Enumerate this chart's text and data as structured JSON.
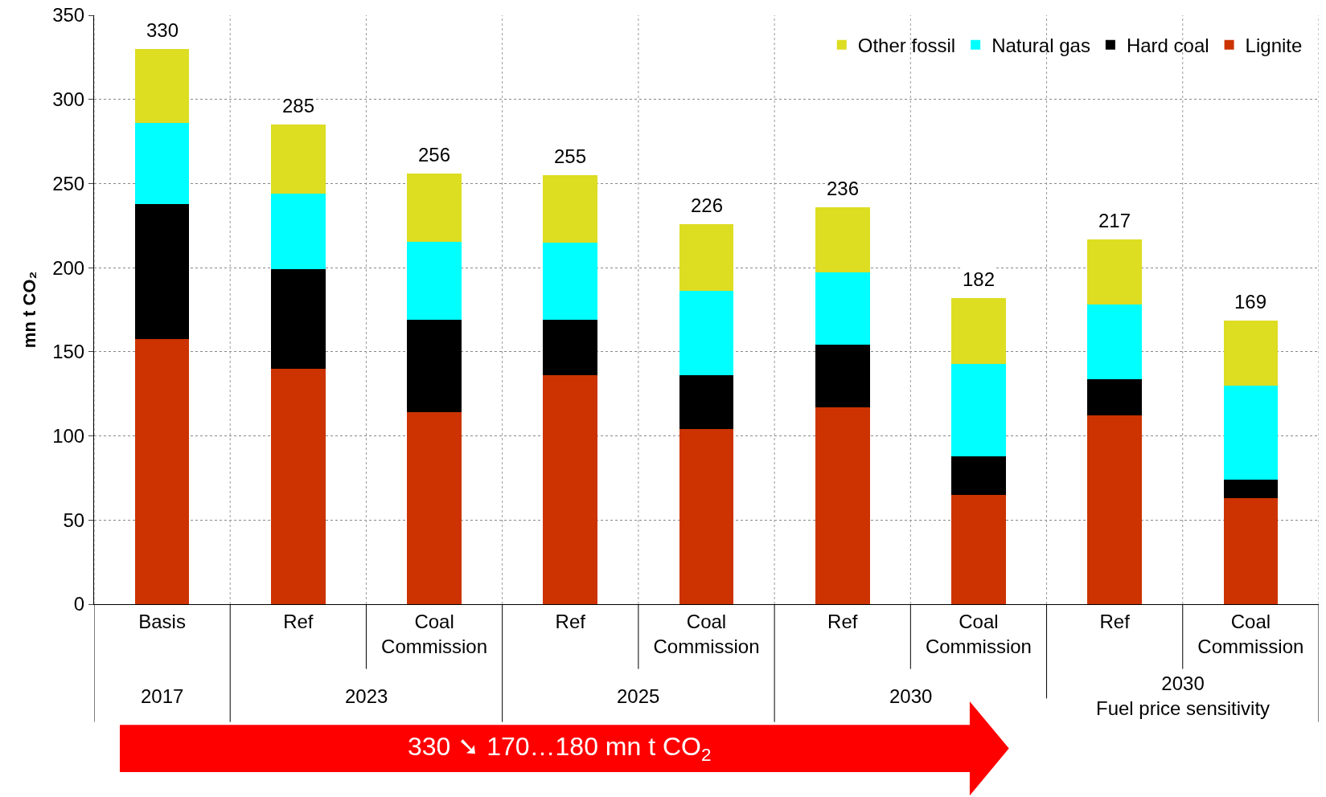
{
  "chart_data": {
    "type": "bar",
    "stacked": true,
    "ylabel": "mn t CO₂",
    "categories": [
      "Basis",
      "Ref",
      "Coal\nCommission",
      "Ref",
      "Coal\nCommission",
      "Ref",
      "Coal\nCommission",
      "Ref",
      "Coal\nCommission"
    ],
    "series": [
      {
        "name": "Lignite",
        "color": "#cc3300",
        "values": [
          157.5,
          140,
          114,
          136,
          104,
          117,
          65,
          112,
          63
        ]
      },
      {
        "name": "Hard coal",
        "color": "#000000",
        "values": [
          80.5,
          59,
          55,
          33,
          32,
          37,
          23,
          21.5,
          11
        ]
      },
      {
        "name": "Natural gas",
        "color": "#00ffff",
        "values": [
          48,
          45,
          46.5,
          46,
          50,
          43,
          55,
          44.5,
          56
        ]
      },
      {
        "name": "Other fossil",
        "color": "#dddd22",
        "values": [
          44,
          41,
          40.5,
          40,
          40,
          39,
          39,
          39,
          38.5
        ]
      }
    ],
    "totals": [
      "330",
      "285",
      "256",
      "255",
      "226",
      "236",
      "182",
      "217",
      "169"
    ],
    "ylim": [
      0,
      350
    ],
    "yticks": [
      0,
      50,
      100,
      150,
      200,
      250,
      300,
      350
    ],
    "grid": true,
    "legend": "top right",
    "annotations": [
      "2017",
      "2023",
      "2025",
      "2030",
      "2030\nFuel price sensitivity",
      "330 ➘ 170…180 mn t CO$_{2}$"
    ]
  }
}
